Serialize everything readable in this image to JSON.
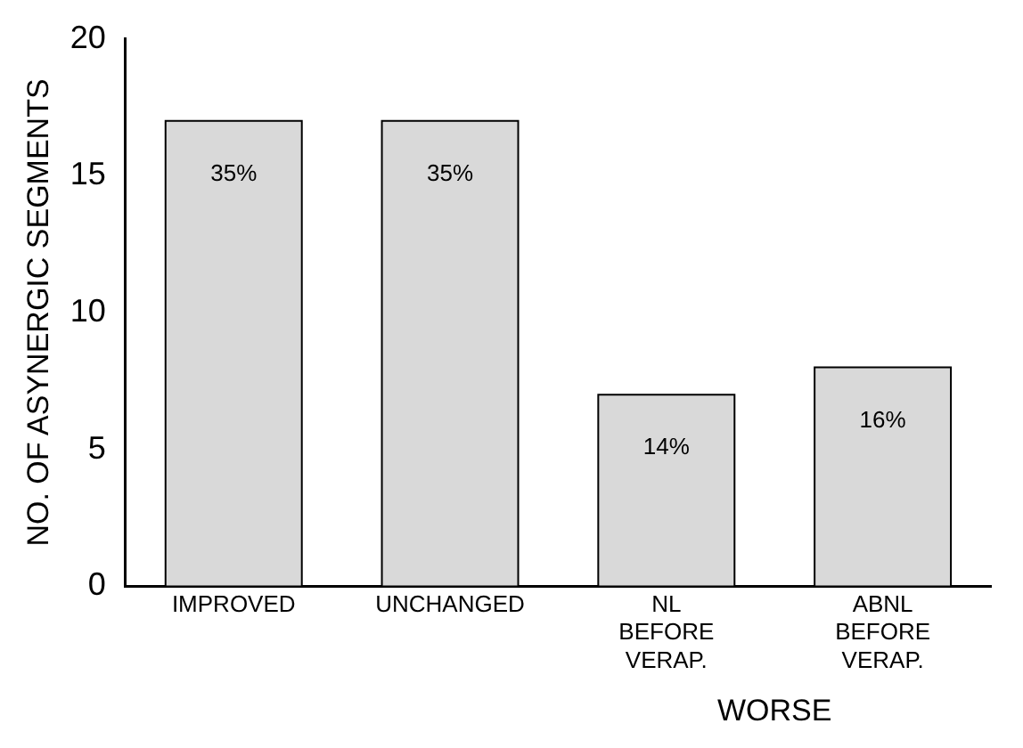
{
  "chart_data": {
    "type": "bar",
    "ylabel": "NO. OF ASYNERGIC SEGMENTS",
    "categories": [
      "IMPROVED",
      "UNCHANGED",
      "NL BEFORE VERAP.",
      "ABNL BEFORE VERAP."
    ],
    "values": [
      17,
      17,
      7,
      8
    ],
    "color": "#d9d9d9",
    "ylim": [
      0,
      20
    ],
    "yticks": [
      0,
      5,
      10,
      15,
      20
    ],
    "grid": false,
    "legend": false,
    "annotations": [
      "WORSE",
      "35%",
      "35%",
      "14%",
      "16%"
    ]
  }
}
